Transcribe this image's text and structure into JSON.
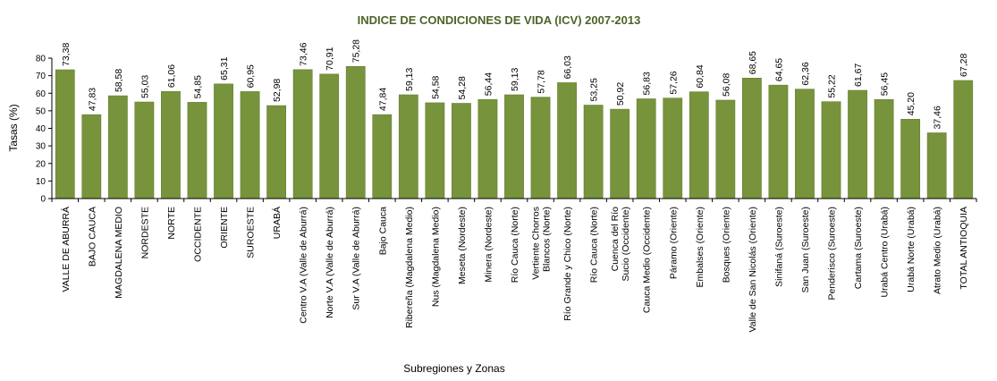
{
  "chart_data": {
    "type": "bar",
    "title": "INDICE  DE CONDICIONES DE VIDA (ICV) 2007-2013",
    "xlabel": "Subregiones y Zonas",
    "ylabel": "Tasas (%)",
    "ylim": [
      0,
      80
    ],
    "yticks": [
      "0",
      "10",
      "20",
      "30",
      "40",
      "50",
      "60",
      "70",
      "80"
    ],
    "grid": false,
    "legend": "none",
    "colors": {
      "bar": "#77933C",
      "bar_edge": "#5E7A2C",
      "title": "#4F6228"
    },
    "categories": [
      "VALLE DE ABURRÁ",
      "BAJO CAUCA",
      "MAGDALENA MEDIO",
      "NORDESTE",
      "NORTE",
      "OCCIDENTE",
      "ORIENTE",
      "SUROESTE",
      "URABÁ",
      "Centro V.A (Valle de Aburrá)",
      "Norte V.A (Valle de Aburrá)",
      "Sur V.A (Valle de Aburrá)",
      "Bajo Cauca",
      "Ribereña  (Magdalena Medio)",
      "Nus  (Magdalena Medio)",
      "Meseta  (Nordeste)",
      "Minera  (Nordeste)",
      "Río Cauca  (Norte)",
      "Vertiente Chorros Blancos (Norte)",
      "Río Grande y Chico  (Norte)",
      "Río Cauca (Norte)",
      "Cuenca del Río Sucio (Occidente)",
      "Cauca Medio  (Occidente)",
      "Páramo  (Oriente)",
      "Embalses (Oriente)",
      "Bosques  (Oriente)",
      "Valle de San Nicolás (Oriente)",
      "Sinifaná  (Suroeste)",
      "San Juan  (Suroeste)",
      "Penderisco  (Suroeste)",
      "Cartama  (Suroeste)",
      "Urabá Centro  (Urabá)",
      "Urabá Norte  (Urabá)",
      "Atrato Medio  (Urabá)",
      "TOTAL ANTIOQUIA"
    ],
    "values": [
      73.38,
      47.83,
      58.58,
      55.03,
      61.06,
      54.85,
      65.31,
      60.95,
      52.98,
      73.46,
      70.91,
      75.28,
      47.84,
      59.13,
      54.58,
      54.28,
      56.44,
      59.13,
      57.78,
      66.03,
      53.25,
      50.92,
      56.83,
      57.26,
      60.84,
      56.08,
      68.65,
      64.65,
      62.36,
      55.22,
      61.67,
      56.45,
      45.2,
      37.46,
      67.28
    ],
    "value_labels": [
      "73,38",
      "47,83",
      "58,58",
      "55,03",
      "61,06",
      "54,85",
      "65,31",
      "60,95",
      "52,98",
      "73,46",
      "70,91",
      "75,28",
      "47,84",
      "59,13",
      "54,58",
      "54,28",
      "56,44",
      "59,13",
      "57,78",
      "66,03",
      "53,25",
      "50,92",
      "56,83",
      "57,26",
      "60,84",
      "56,08",
      "68,65",
      "64,65",
      "62,36",
      "55,22",
      "61,67",
      "56,45",
      "45,20",
      "37,46",
      "67,28"
    ]
  }
}
